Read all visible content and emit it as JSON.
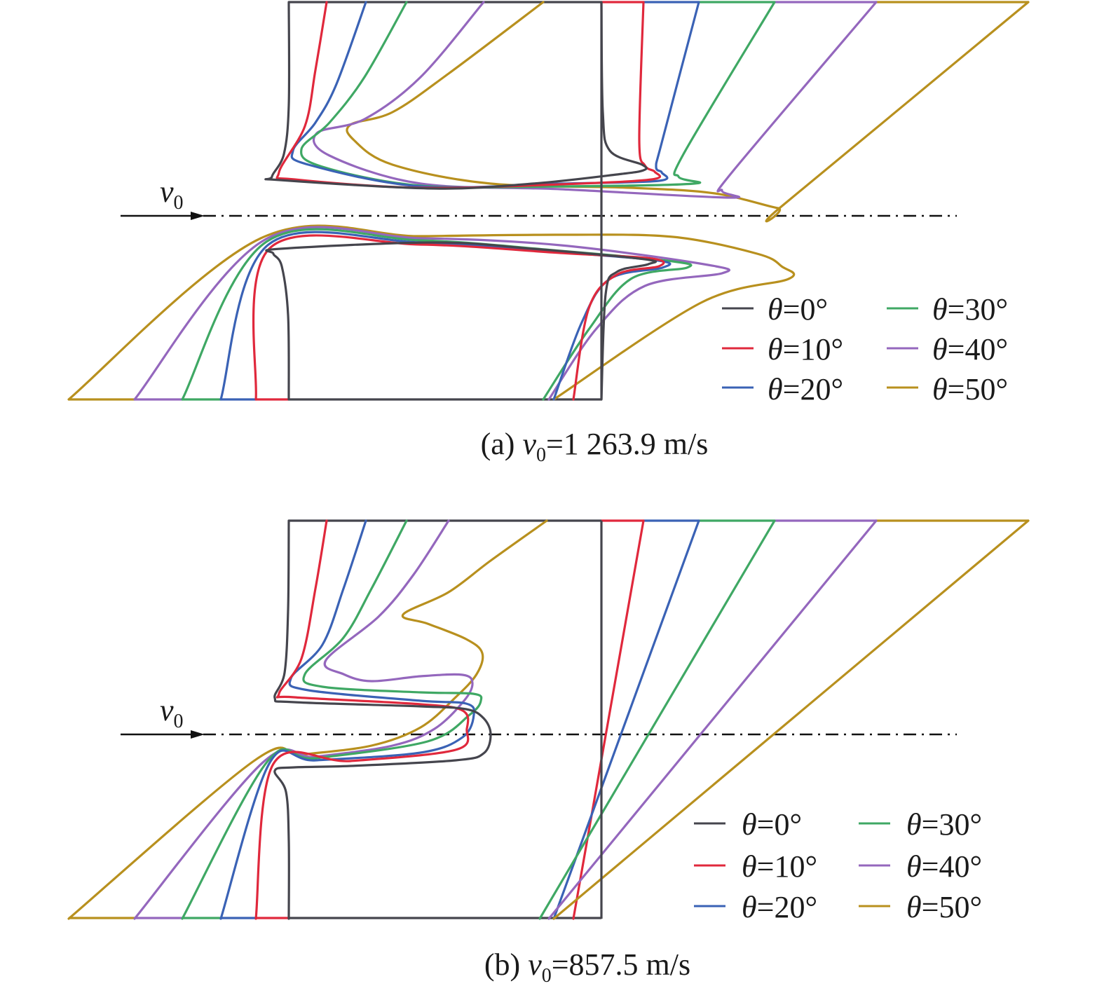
{
  "figure": {
    "colors": {
      "theta_0": "#45454d",
      "theta_10": "#e0283c",
      "theta_20": "#3a62b5",
      "theta_30": "#3fa864",
      "theta_40": "#9467bd",
      "theta_50": "#b8901e",
      "axis": "#111111"
    },
    "panels": [
      {
        "caption": {
          "prefix": "(a) ",
          "var": "v",
          "sub": "0",
          "rest": "=1 263.9 m/s"
        },
        "velocity_label": {
          "var": "v",
          "sub": "0"
        },
        "legend": [
          {
            "symbol": "θ",
            "text": "=0°",
            "color_key": "theta_0"
          },
          {
            "symbol": "θ",
            "text": "=10°",
            "color_key": "theta_10"
          },
          {
            "symbol": "θ",
            "text": "=20°",
            "color_key": "theta_20"
          },
          {
            "symbol": "θ",
            "text": "=30°",
            "color_key": "theta_30"
          },
          {
            "symbol": "θ",
            "text": "=40°",
            "color_key": "theta_40"
          },
          {
            "symbol": "θ",
            "text": "=50°",
            "color_key": "theta_50"
          }
        ]
      },
      {
        "caption": {
          "prefix": "(b) ",
          "var": "v",
          "sub": "0",
          "rest": "=857.5 m/s"
        },
        "velocity_label": {
          "var": "v",
          "sub": "0"
        },
        "legend": [
          {
            "symbol": "θ",
            "text": "=0°",
            "color_key": "theta_0"
          },
          {
            "symbol": "θ",
            "text": "=10°",
            "color_key": "theta_10"
          },
          {
            "symbol": "θ",
            "text": "=20°",
            "color_key": "theta_20"
          },
          {
            "symbol": "θ",
            "text": "=30°",
            "color_key": "theta_30"
          },
          {
            "symbol": "θ",
            "text": "=40°",
            "color_key": "theta_40"
          },
          {
            "symbol": "θ",
            "text": "=50°",
            "color_key": "theta_50"
          }
        ]
      }
    ]
  }
}
